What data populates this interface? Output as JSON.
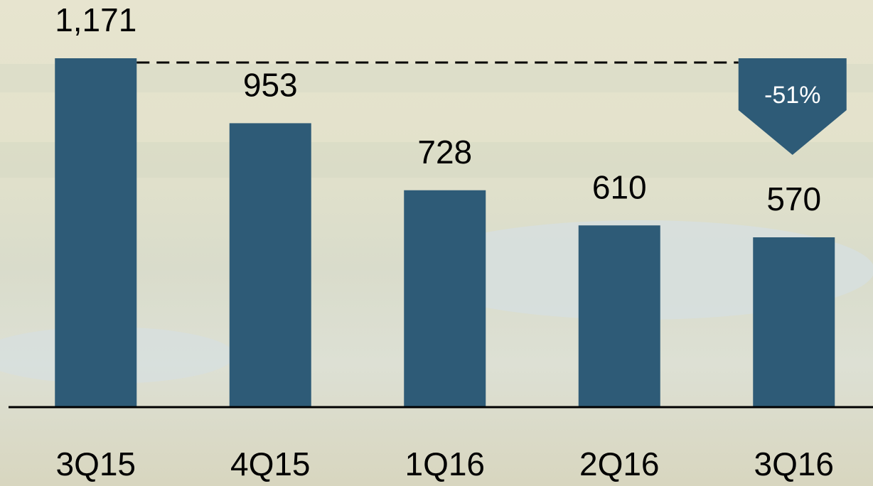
{
  "chart_data": {
    "type": "bar",
    "categories": [
      "3Q15",
      "4Q15",
      "1Q16",
      "2Q16",
      "3Q16"
    ],
    "values": [
      1171,
      953,
      728,
      610,
      570
    ],
    "value_labels": [
      "1,171",
      "953",
      "728",
      "610",
      "570"
    ],
    "color": "#2e5b77",
    "annotation": "-51%"
  }
}
